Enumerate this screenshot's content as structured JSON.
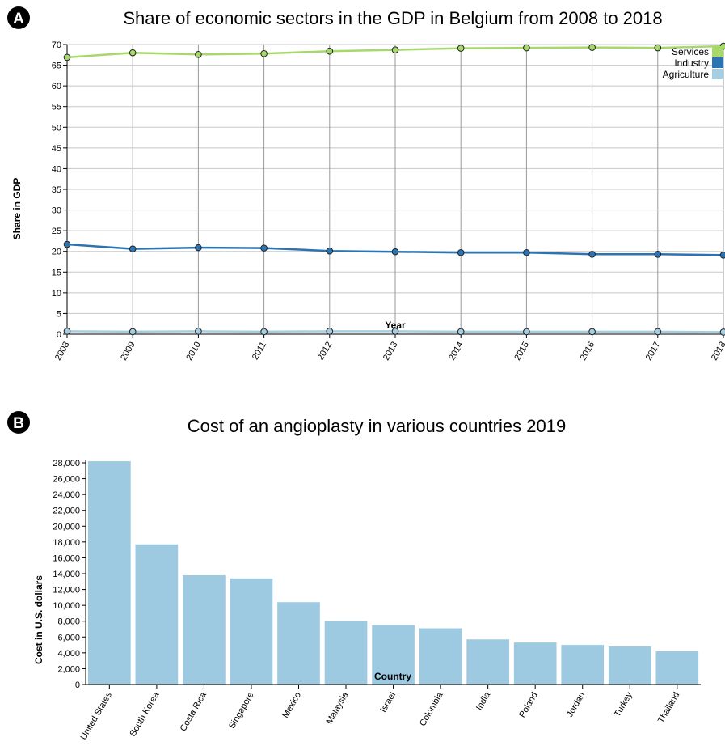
{
  "chart_data": [
    {
      "panel_label": "A",
      "type": "line",
      "title": "Share of economic sectors in the GDP in Belgium from 2008 to 2018",
      "xlabel": "Year",
      "ylabel": "Share in GDP",
      "x": [
        "2008",
        "2009",
        "2010",
        "2011",
        "2012",
        "2013",
        "2014",
        "2015",
        "2016",
        "2017",
        "2018"
      ],
      "ylim": [
        0,
        70
      ],
      "yticks": [
        "0",
        "5",
        "10",
        "15",
        "20",
        "25",
        "30",
        "35",
        "40",
        "45",
        "50",
        "55",
        "60",
        "65",
        "70"
      ],
      "grid": true,
      "legend_position": "top-right",
      "series": [
        {
          "name": "Services",
          "color": "#a6d96a",
          "values": [
            66.9,
            68.0,
            67.6,
            67.8,
            68.4,
            68.7,
            69.1,
            69.2,
            69.3,
            69.2,
            69.6
          ]
        },
        {
          "name": "Industry",
          "color": "#2b74b3",
          "values": [
            21.7,
            20.6,
            20.9,
            20.8,
            20.1,
            19.9,
            19.7,
            19.7,
            19.3,
            19.3,
            19.1
          ]
        },
        {
          "name": "Agriculture",
          "color": "#a6cee3",
          "values": [
            0.7,
            0.6,
            0.7,
            0.6,
            0.7,
            0.7,
            0.6,
            0.6,
            0.6,
            0.6,
            0.5
          ]
        }
      ]
    },
    {
      "panel_label": "B",
      "type": "bar",
      "title": "Cost of an angioplasty in various countries 2019",
      "xlabel": "Country",
      "ylabel": "Cost in U.S. dollars",
      "categories": [
        "United States",
        "South Korea",
        "Costa Rica",
        "Singapore",
        "Mexico",
        "Malaysia",
        "Israel",
        "Colombia",
        "India",
        "Poland",
        "Jordan",
        "Turkey",
        "Thailand"
      ],
      "values": [
        28200,
        17700,
        13800,
        13400,
        10400,
        8000,
        7500,
        7100,
        5700,
        5300,
        5000,
        4800,
        4200
      ],
      "ylim": [
        0,
        28000
      ],
      "yticks": [
        "0",
        "2,000",
        "4,000",
        "6,000",
        "8,000",
        "10,000",
        "12,000",
        "14,000",
        "16,000",
        "18,000",
        "20,000",
        "22,000",
        "24,000",
        "26,000",
        "28,000"
      ],
      "grid": false,
      "bar_color": "#9ecae1"
    }
  ]
}
